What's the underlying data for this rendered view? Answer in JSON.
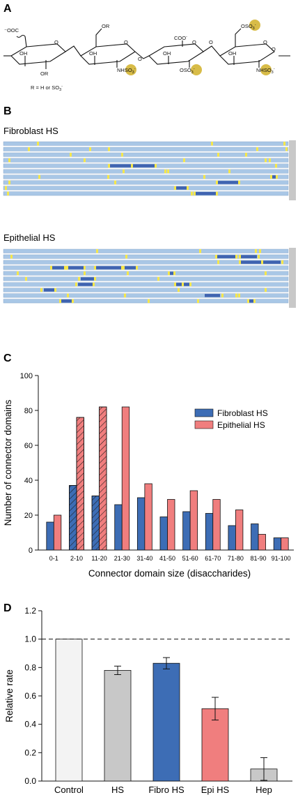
{
  "panel_a": {
    "label": "A",
    "r_note": "R = H or SO",
    "r_note_sub": "3",
    "r_note_sup": "-",
    "group_ooc": "OOC",
    "group_coo": "COO",
    "group_or": "OR",
    "group_oh": "OH",
    "group_o": "O",
    "group_nhso3": "NHSO",
    "group_oso3": "OSO",
    "group_so3": "SO",
    "sub3": "3",
    "sup_minus": "-",
    "sulfate_color": "#d4b534"
  },
  "panel_b": {
    "label": "B",
    "fibroblast_title": "Fibroblast HS",
    "epithelial_title": "Epithelial HS",
    "colors": {
      "chain": "#a9c7e6",
      "connector": "#3f63b0",
      "sulfated": "#f5e74b",
      "end_cap": "#c8c8c8"
    }
  },
  "chart_data": [
    {
      "type": "bar",
      "panel": "C",
      "categories": [
        "0-1",
        "2-10",
        "11-20",
        "21-30",
        "31-40",
        "41-50",
        "51-60",
        "61-70",
        "71-80",
        "81-90",
        "91-100"
      ],
      "series": [
        {
          "name": "Fibroblast HS",
          "values": [
            16,
            37,
            31,
            26,
            30,
            19,
            22,
            21,
            14,
            15,
            7
          ],
          "color": "#3d6db5",
          "hatched_categories": [
            "2-10",
            "11-20"
          ]
        },
        {
          "name": "Epithelial HS",
          "values": [
            20,
            76,
            82,
            82,
            38,
            29,
            34,
            29,
            23,
            9,
            7
          ],
          "color": "#f07e7e",
          "hatched_categories": [
            "2-10",
            "11-20"
          ]
        }
      ],
      "title": "",
      "xlabel": "Connector domain size (disaccharides)",
      "ylabel": "Number of connector domains",
      "ylim": [
        0,
        100
      ],
      "yticks": [
        0,
        20,
        40,
        60,
        80,
        100
      ],
      "legend_position": "top-right",
      "grid": false
    },
    {
      "type": "bar",
      "panel": "D",
      "categories": [
        "Control",
        "HS",
        "Fibro HS",
        "Epi HS",
        "Hep"
      ],
      "values": [
        1.0,
        0.78,
        0.83,
        0.51,
        0.085
      ],
      "errors": [
        0,
        0.03,
        0.04,
        0.08,
        0.08
      ],
      "colors": [
        "#f3f3f3",
        "#c8c8c8",
        "#3d6db5",
        "#f07e7e",
        "#c8c8c8"
      ],
      "title": "",
      "xlabel": "",
      "ylabel": "Relative rate",
      "ylim": [
        0,
        1.2
      ],
      "yticks": [
        "0.0",
        "0.2",
        "0.4",
        "0.6",
        "0.8",
        "1.0",
        "1.2"
      ],
      "reference_line": 1.0,
      "grid": false
    }
  ]
}
